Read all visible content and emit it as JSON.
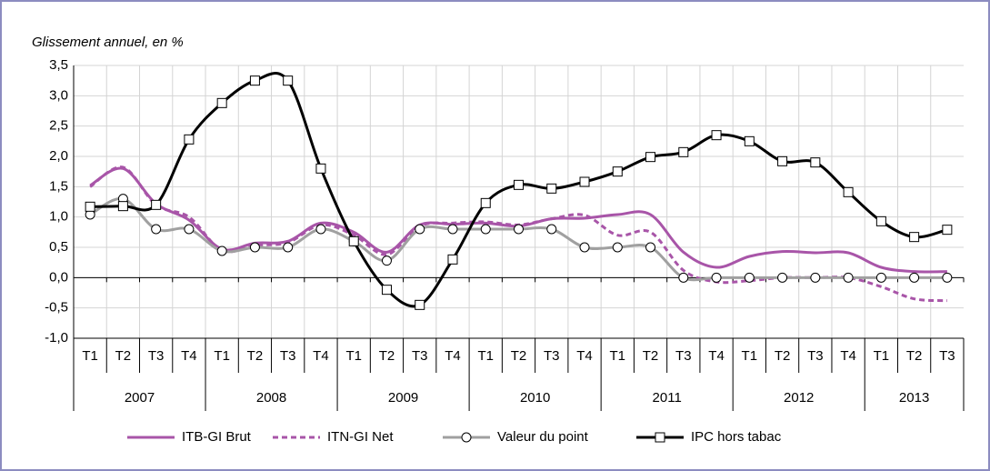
{
  "chart_data": {
    "type": "line",
    "subtitle": "Glissement annuel, en %",
    "groups": [
      {
        "label": "2007",
        "categories": [
          "T1",
          "T2",
          "T3",
          "T4"
        ]
      },
      {
        "label": "2008",
        "categories": [
          "T1",
          "T2",
          "T3",
          "T4"
        ]
      },
      {
        "label": "2009",
        "categories": [
          "T1",
          "T2",
          "T3",
          "T4"
        ]
      },
      {
        "label": "2010",
        "categories": [
          "T1",
          "T2",
          "T3",
          "T4"
        ]
      },
      {
        "label": "2011",
        "categories": [
          "T1",
          "T2",
          "T3",
          "T4"
        ]
      },
      {
        "label": "2012",
        "categories": [
          "T1",
          "T2",
          "T3",
          "T4"
        ]
      },
      {
        "label": "2013",
        "categories": [
          "T1",
          "T2",
          "T3"
        ]
      }
    ],
    "series": [
      {
        "name": "ITB-GI Brut",
        "color": "#a855a8",
        "dash": false,
        "marker": "none",
        "values": [
          1.52,
          1.8,
          1.22,
          0.95,
          0.47,
          0.57,
          0.6,
          0.9,
          0.75,
          0.42,
          0.87,
          0.88,
          0.9,
          0.85,
          0.97,
          0.98,
          1.04,
          1.04,
          0.42,
          0.17,
          0.35,
          0.43,
          0.41,
          0.41,
          0.17,
          0.1,
          0.1
        ]
      },
      {
        "name": "ITN-GI Net",
        "color": "#a855a8",
        "dash": true,
        "marker": "none",
        "values": [
          1.5,
          1.82,
          1.2,
          1.0,
          0.45,
          0.53,
          0.58,
          0.87,
          0.7,
          0.38,
          0.85,
          0.9,
          0.92,
          0.87,
          0.97,
          1.03,
          0.7,
          0.75,
          0.12,
          -0.07,
          -0.05,
          0,
          0,
          0,
          -0.15,
          -0.35,
          -0.38
        ]
      },
      {
        "name": "Valeur du point",
        "color": "#a0a0a0",
        "dash": false,
        "marker": "circle",
        "values": [
          1.04,
          1.3,
          0.8,
          0.8,
          0.44,
          0.5,
          0.5,
          0.8,
          0.6,
          0.28,
          0.8,
          0.8,
          0.8,
          0.8,
          0.8,
          0.5,
          0.5,
          0.5,
          0,
          0,
          0,
          0,
          0,
          0,
          0,
          0,
          0
        ]
      },
      {
        "name": "IPC hors tabac",
        "color": "#000000",
        "dash": false,
        "marker": "square",
        "values": [
          1.17,
          1.18,
          1.2,
          2.28,
          2.88,
          3.25,
          3.25,
          1.8,
          0.6,
          -0.2,
          -0.45,
          0.3,
          1.23,
          1.53,
          1.47,
          1.58,
          1.75,
          1.99,
          2.07,
          2.35,
          2.25,
          1.92,
          1.9,
          1.41,
          0.93,
          0.67,
          0.79
        ]
      }
    ],
    "ylim": [
      -1.0,
      3.5
    ],
    "yticks": [
      {
        "value": -1.0,
        "label": "-1,0"
      },
      {
        "value": -0.5,
        "label": "-0,5"
      },
      {
        "value": 0,
        "label": "0,0"
      },
      {
        "value": 0.5,
        "label": "0,5"
      },
      {
        "value": 1.0,
        "label": "1,0"
      },
      {
        "value": 1.5,
        "label": "1,5"
      },
      {
        "value": 2.0,
        "label": "2,0"
      },
      {
        "value": 2.5,
        "label": "2,5"
      },
      {
        "value": 3.0,
        "label": "3,0"
      },
      {
        "value": 3.5,
        "label": "3,5"
      }
    ],
    "grid": true,
    "legend": "bottom",
    "smooth": true
  }
}
